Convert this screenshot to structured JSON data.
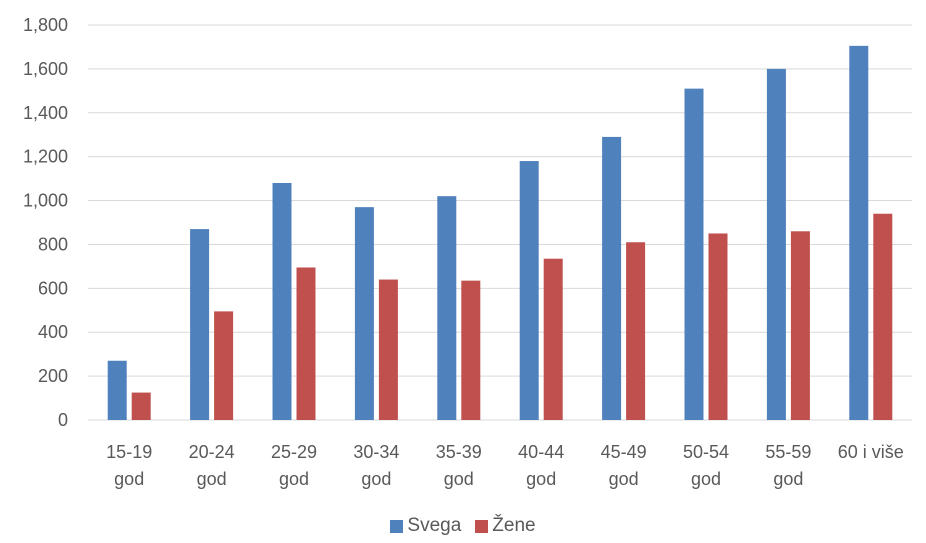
{
  "chart_data": {
    "type": "bar",
    "categories": [
      [
        "15-19",
        "god"
      ],
      [
        "20-24",
        "god"
      ],
      [
        "25-29",
        "god"
      ],
      [
        "30-34",
        "god"
      ],
      [
        "35-39",
        "god"
      ],
      [
        "40-44",
        "god"
      ],
      [
        "45-49",
        "god"
      ],
      [
        "50-54",
        "god"
      ],
      [
        "55-59",
        "god"
      ],
      [
        "60 i više"
      ]
    ],
    "series": [
      {
        "name": "Svega",
        "color": "#4F81BD",
        "values": [
          270,
          870,
          1080,
          970,
          1020,
          1180,
          1290,
          1510,
          1600,
          1705
        ]
      },
      {
        "name": "Žene",
        "color": "#C0504D",
        "values": [
          125,
          495,
          695,
          640,
          635,
          735,
          810,
          850,
          860,
          940
        ]
      }
    ],
    "ylim": [
      0,
      1800
    ],
    "yticks": [
      0,
      200,
      400,
      600,
      800,
      1000,
      1200,
      1400,
      1600,
      1800
    ],
    "ytick_labels": [
      "0",
      "200",
      "400",
      "600",
      "800",
      "1,000",
      "1,200",
      "1,400",
      "1,600",
      "1,800"
    ],
    "grid": true,
    "legend_position": "bottom"
  }
}
